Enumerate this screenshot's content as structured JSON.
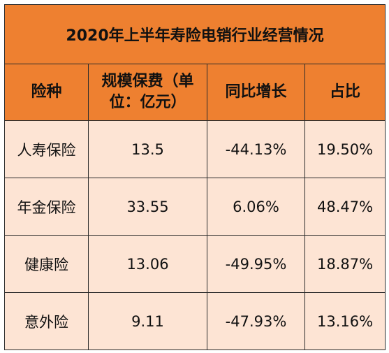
{
  "chart_data": {
    "type": "table",
    "title": "2020年上半年寿险电销行业经营情况",
    "columns": [
      "险种",
      "规模保费（单位：亿元）",
      "同比增长",
      "占比"
    ],
    "rows": [
      [
        "人寿保险",
        "13.5",
        "-44.13%",
        "19.50%"
      ],
      [
        "年金保险",
        "33.55",
        "6.06%",
        "48.47%"
      ],
      [
        "健康险",
        "13.06",
        "-49.95%",
        "18.87%"
      ],
      [
        "意外险",
        "9.11",
        "-47.93%",
        "13.16%"
      ]
    ]
  },
  "colors": {
    "header_bg": "#ee8030",
    "body_bg": "#fde4d4",
    "border": "#2b2b2b"
  }
}
